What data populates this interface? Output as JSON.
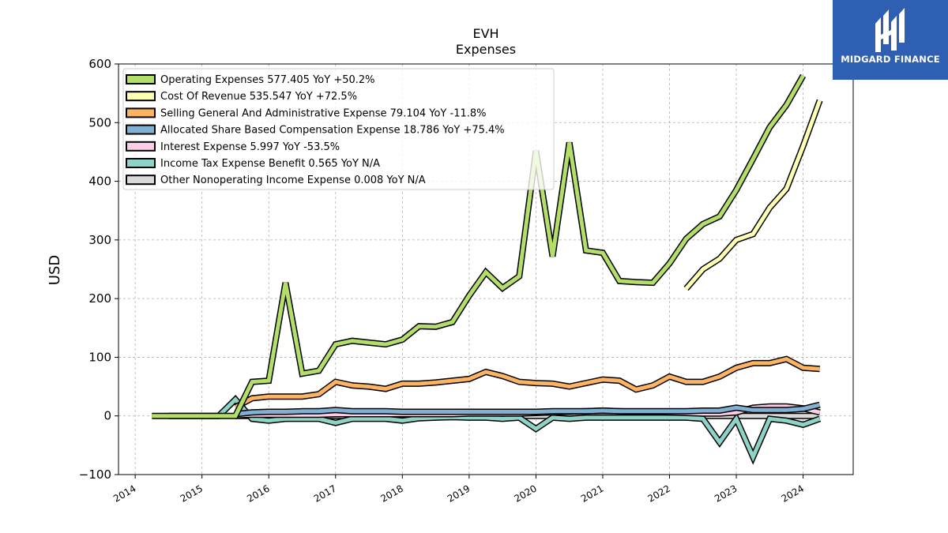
{
  "chart_data": {
    "type": "line",
    "title": "EVH",
    "subtitle": "Expenses",
    "ylabel": "USD",
    "xlabel": "",
    "ylim": [
      -100,
      600
    ],
    "xlim": [
      2013.75,
      2024.75
    ],
    "yticks": [
      -100,
      0,
      100,
      200,
      300,
      400,
      500,
      600
    ],
    "yticklabels": [
      "−100",
      "0",
      "100",
      "200",
      "300",
      "400",
      "500",
      "600"
    ],
    "xticks": [
      2014,
      2015,
      2016,
      2017,
      2018,
      2019,
      2020,
      2021,
      2022,
      2023,
      2024
    ],
    "xticklabels": [
      "2014",
      "2015",
      "2016",
      "2017",
      "2018",
      "2019",
      "2020",
      "2021",
      "2022",
      "2023",
      "2024"
    ],
    "grid": true,
    "legend_position": "top-left",
    "series": [
      {
        "name": "Operating Expenses",
        "legend": "Operating Expenses  577.405 YoY +50.2%",
        "color": "#b3de69",
        "x": [
          2014.25,
          2014.5,
          2014.75,
          2015.0,
          2015.25,
          2015.5,
          2015.75,
          2016.0,
          2016.25,
          2016.5,
          2016.75,
          2017.0,
          2017.25,
          2017.5,
          2017.75,
          2018.0,
          2018.25,
          2018.5,
          2018.75,
          2019.0,
          2019.25,
          2019.5,
          2019.75,
          2020.0,
          2020.25,
          2020.5,
          2020.75,
          2021.0,
          2021.25,
          2021.5,
          2021.75,
          2022.0,
          2022.25,
          2022.5,
          2022.75,
          2023.0,
          2023.25,
          2023.5,
          2023.75,
          2024.0
        ],
        "values": [
          0,
          0,
          0,
          0,
          0,
          0,
          58,
          60,
          227,
          72,
          77,
          122,
          128,
          125,
          122,
          130,
          153,
          152,
          160,
          205,
          245,
          218,
          238,
          452,
          272,
          466,
          282,
          278,
          230,
          228,
          227,
          260,
          302,
          327,
          340,
          385,
          438,
          492,
          530,
          580
        ]
      },
      {
        "name": "Cost Of Revenue",
        "legend": "Cost Of Revenue  535.547 YoY +72.5%",
        "color": "#ffffb3",
        "x": [
          2022.25,
          2022.5,
          2022.75,
          2023.0,
          2023.25,
          2023.5,
          2023.75,
          2024.0,
          2024.25
        ],
        "values": [
          217,
          250,
          268,
          300,
          310,
          355,
          387,
          460,
          538
        ]
      },
      {
        "name": "Selling General And Administrative Expense",
        "legend": "Selling General And Administrative Expense  79.104 YoY -11.8%",
        "color": "#fdb462",
        "x": [
          2015.5,
          2015.75,
          2016.0,
          2016.25,
          2016.5,
          2016.75,
          2017.0,
          2017.25,
          2017.5,
          2017.75,
          2018.0,
          2018.25,
          2018.5,
          2018.75,
          2019.0,
          2019.25,
          2019.5,
          2019.75,
          2020.0,
          2020.25,
          2020.5,
          2020.75,
          2021.0,
          2021.25,
          2021.5,
          2021.75,
          2022.0,
          2022.25,
          2022.5,
          2022.75,
          2023.0,
          2023.25,
          2023.5,
          2023.75,
          2024.0,
          2024.25
        ],
        "values": [
          15,
          30,
          33,
          33,
          33,
          37,
          58,
          52,
          50,
          46,
          55,
          55,
          57,
          60,
          63,
          75,
          68,
          58,
          56,
          55,
          50,
          56,
          62,
          60,
          45,
          52,
          67,
          58,
          58,
          67,
          82,
          90,
          90,
          97,
          82,
          80
        ]
      },
      {
        "name": "Allocated Share Based Compensation Expense",
        "legend": "Allocated Share Based Compensation Expense  18.786 YoY +75.4%",
        "color": "#80b1d3",
        "x": [
          2015.5,
          2015.75,
          2016.0,
          2016.25,
          2016.5,
          2016.75,
          2017.0,
          2017.25,
          2017.5,
          2017.75,
          2018.0,
          2018.25,
          2018.5,
          2018.75,
          2019.0,
          2019.25,
          2019.5,
          2019.75,
          2020.0,
          2020.25,
          2020.5,
          2020.75,
          2021.0,
          2021.25,
          2021.5,
          2021.75,
          2022.0,
          2022.25,
          2022.5,
          2022.75,
          2023.0,
          2023.25,
          2023.5,
          2023.75,
          2024.0,
          2024.25
        ],
        "values": [
          3,
          6,
          7,
          7,
          8,
          8,
          10,
          8,
          8,
          8,
          7,
          7,
          7,
          7,
          7,
          7,
          7,
          7,
          7,
          8,
          8,
          8,
          9,
          8,
          8,
          8,
          8,
          8,
          9,
          9,
          14,
          10,
          10,
          10,
          12,
          19
        ]
      },
      {
        "name": "Interest Expense",
        "legend": "Interest Expense  5.997 YoY -53.5%",
        "color": "#fccde5",
        "x": [
          2015.5,
          2015.75,
          2016.0,
          2016.25,
          2016.5,
          2016.75,
          2017.0,
          2017.25,
          2017.5,
          2017.75,
          2018.0,
          2018.25,
          2018.5,
          2018.75,
          2019.0,
          2019.25,
          2019.5,
          2019.75,
          2020.0,
          2020.25,
          2020.5,
          2020.75,
          2021.0,
          2021.25,
          2021.5,
          2021.75,
          2022.0,
          2022.25,
          2022.5,
          2022.75,
          2023.0,
          2023.25,
          2023.5,
          2023.75,
          2024.0,
          2024.25
        ],
        "values": [
          1,
          2,
          2,
          2,
          2,
          2,
          3,
          3,
          3,
          3,
          3,
          3,
          3,
          3,
          4,
          4,
          4,
          4,
          5,
          6,
          7,
          8,
          9,
          8,
          7,
          7,
          6,
          5,
          4,
          4,
          6,
          14,
          16,
          16,
          13,
          6
        ]
      },
      {
        "name": "Income Tax Expense Benefit",
        "legend": "Income Tax Expense Benefit  0.565 YoY N/A",
        "color": "#8dd3c7",
        "x": [
          2014.5,
          2014.75,
          2015.0,
          2015.25,
          2015.5,
          2015.75,
          2016.0,
          2016.25,
          2016.5,
          2016.75,
          2017.0,
          2017.25,
          2017.5,
          2017.75,
          2018.0,
          2018.25,
          2018.5,
          2018.75,
          2019.0,
          2019.25,
          2019.5,
          2019.75,
          2020.0,
          2020.25,
          2020.5,
          2020.75,
          2021.0,
          2021.25,
          2021.5,
          2021.75,
          2022.0,
          2022.25,
          2022.5,
          2022.75,
          2023.0,
          2023.25,
          2023.5,
          2023.75,
          2024.0,
          2024.25
        ],
        "values": [
          0,
          0,
          0,
          0,
          28,
          -5,
          -8,
          -5,
          -5,
          -5,
          -12,
          -5,
          -5,
          -5,
          -8,
          -4,
          -3,
          -2,
          -3,
          -3,
          -5,
          -3,
          -22,
          -3,
          -5,
          -3,
          -3,
          -3,
          -3,
          -3,
          -3,
          -3,
          -5,
          -45,
          -5,
          -70,
          -5,
          -8,
          -15,
          -5
        ]
      },
      {
        "name": "Other Nonoperating Income Expense",
        "legend": "Other Nonoperating Income Expense  0.008 YoY N/A",
        "color": "#d9d9d9",
        "x": [
          2015.5,
          2015.75,
          2016.0,
          2016.25,
          2016.5,
          2016.75,
          2017.0,
          2017.25,
          2017.5,
          2017.75,
          2018.0,
          2018.25,
          2018.5,
          2018.75,
          2019.0,
          2019.25,
          2019.5,
          2019.75,
          2020.0,
          2020.25,
          2020.5,
          2020.75,
          2021.0,
          2021.25,
          2021.5,
          2021.75,
          2022.0,
          2022.25,
          2022.5,
          2022.75,
          2023.0,
          2023.25,
          2023.5,
          2023.75,
          2024.0,
          2024.25
        ],
        "values": [
          0,
          0,
          0,
          0,
          0,
          0,
          0,
          0,
          0,
          0,
          0,
          0,
          0,
          0,
          0,
          0,
          0,
          0,
          0,
          0,
          0,
          0,
          0,
          0,
          0,
          0,
          0,
          0,
          0,
          0,
          0,
          0,
          0,
          0,
          0,
          0
        ]
      }
    ]
  },
  "logo": {
    "text": "MIDGARD FINANCE",
    "icon": "midgard-monogram-icon",
    "background": "#2f5fb3"
  }
}
